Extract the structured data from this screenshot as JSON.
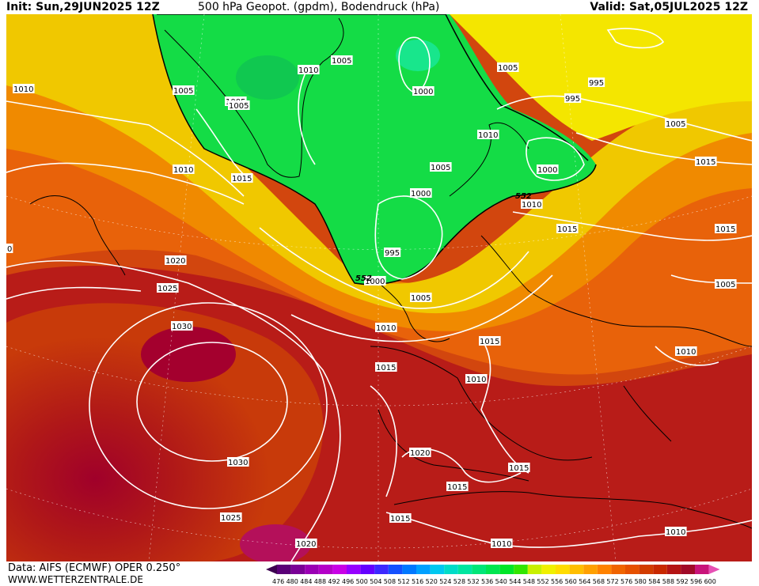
{
  "header": {
    "init": "Init: Sun,29JUN2025 12Z",
    "title": "500 hPa Geopot. (gpdm), Bodendruck (hPa)",
    "valid": "Valid: Sat,05JUL2025 12Z"
  },
  "footer": {
    "data_source": "Data: AIFS (ECMWF) OPER 0.250°",
    "website": "WWW.WETTERZENTRALE.DE"
  },
  "legend": {
    "labels": [
      "476",
      "480",
      "484",
      "488",
      "492",
      "496",
      "500",
      "504",
      "508",
      "512",
      "516",
      "520",
      "524",
      "528",
      "532",
      "536",
      "540",
      "544",
      "548",
      "552",
      "556",
      "560",
      "564",
      "568",
      "572",
      "576",
      "580",
      "584",
      "588",
      "592",
      "596",
      "600"
    ],
    "colors": [
      "#3c0050",
      "#5a0078",
      "#7a0096",
      "#9a00b4",
      "#b400c8",
      "#c800e6",
      "#9600ff",
      "#6400ff",
      "#3c28ff",
      "#1450ff",
      "#0078ff",
      "#00a0ff",
      "#00c8f0",
      "#00dcc8",
      "#00e6a0",
      "#00e678",
      "#00e650",
      "#00e628",
      "#32e600",
      "#c8f000",
      "#f0f000",
      "#ffdc00",
      "#ffbe00",
      "#ffa000",
      "#ff8200",
      "#f06400",
      "#e65000",
      "#d23c00",
      "#c82800",
      "#b41414",
      "#a00a28",
      "#c8147a",
      "#e650b4"
    ]
  },
  "isobar_labels": [
    "1010",
    "1005",
    "1005",
    "1010",
    "1005",
    "1000",
    "1005",
    "995",
    "995",
    "1010",
    "1005",
    "1000",
    "1005",
    "1010",
    "1015",
    "1005",
    "1000",
    "552",
    "1010",
    "1015",
    "1005",
    "1015",
    "1010",
    "1020",
    "1025",
    "1030",
    "995",
    "1000",
    "552",
    "1005",
    "1010",
    "1015",
    "1010",
    "1015",
    "1020",
    "1015",
    "1015",
    "1015",
    "1030",
    "1025",
    "1015",
    "1020",
    "1010",
    "1010",
    "0"
  ],
  "geopotential_label": "552"
}
